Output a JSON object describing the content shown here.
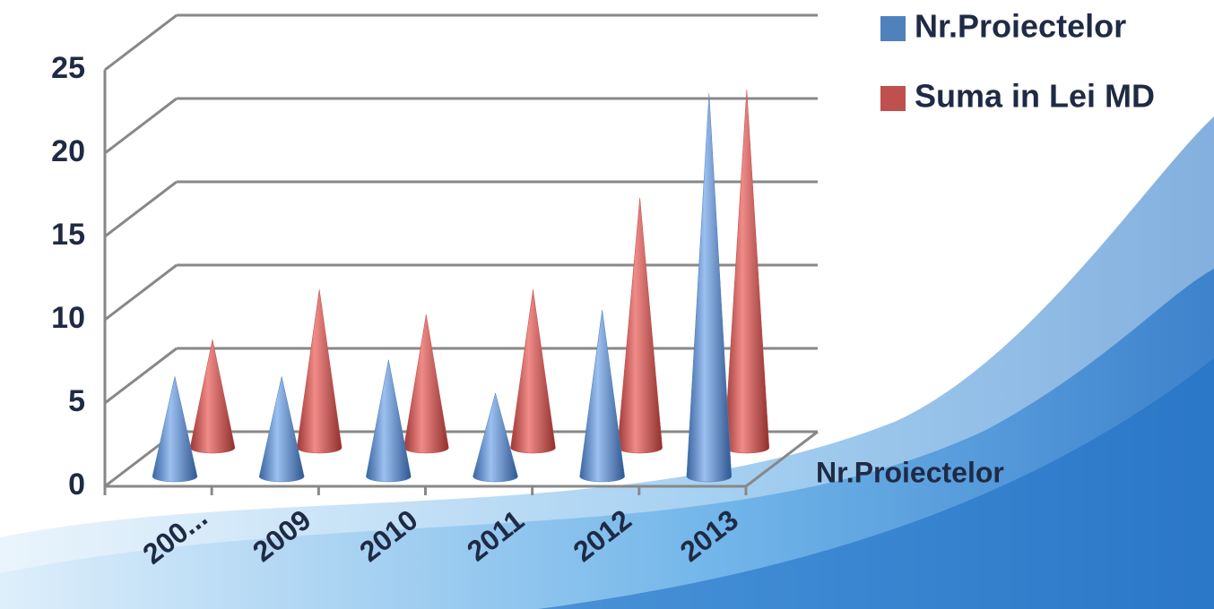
{
  "chart_data": {
    "type": "cone3d",
    "categories": [
      "200...",
      "2009",
      "2010",
      "2011",
      "2012",
      "2013"
    ],
    "series": [
      {
        "name": "Nr.Proiectelor",
        "color": "#4f81bd",
        "values": [
          6,
          6,
          7,
          5,
          10,
          23
        ]
      },
      {
        "name": "Suma in Lei MD",
        "color": "#c0504d",
        "values": [
          6.5,
          9.5,
          8,
          9.5,
          15,
          21.5
        ]
      }
    ],
    "depth_labels": [
      "Nr.Proiectelor"
    ],
    "ylim": [
      0,
      25
    ],
    "yticks": [
      0,
      5,
      10,
      15,
      20,
      25
    ],
    "grid": true,
    "legend": "top-right"
  }
}
